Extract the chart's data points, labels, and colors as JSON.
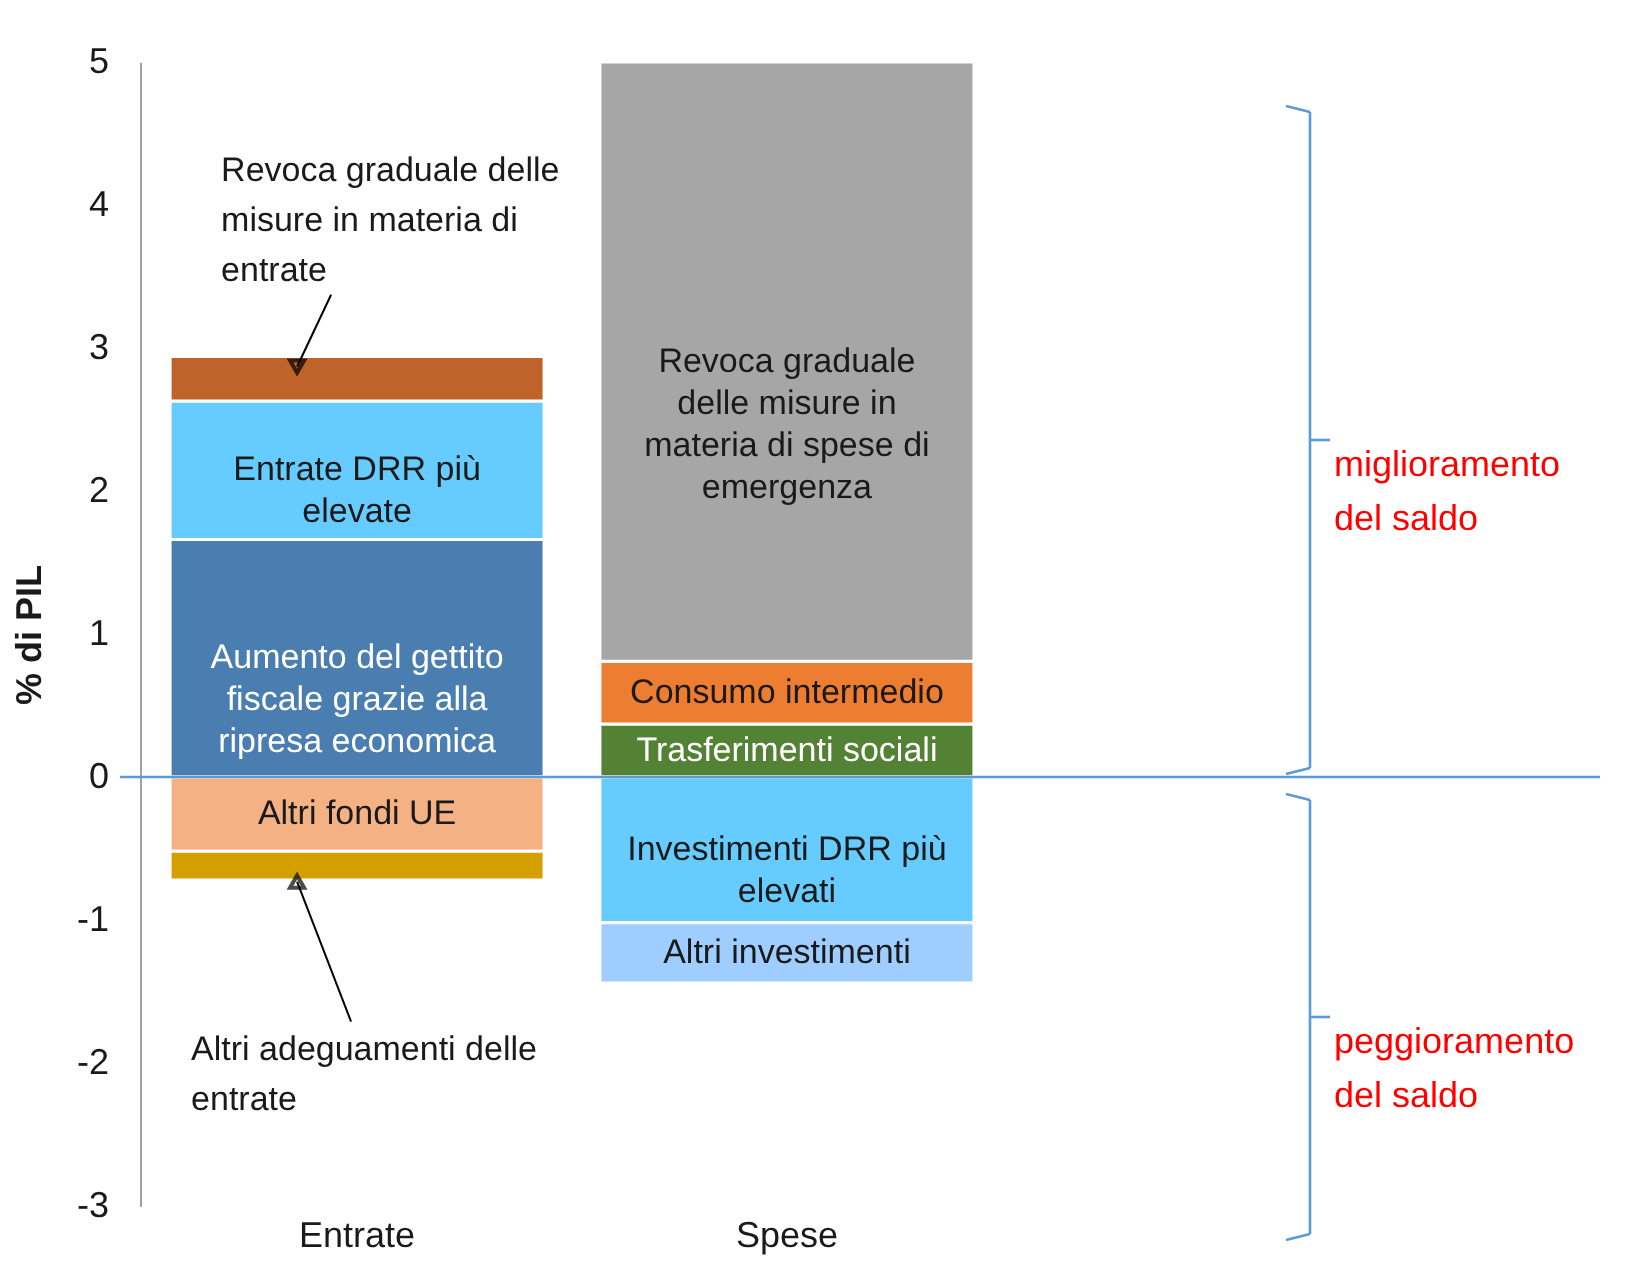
{
  "chart_data": {
    "type": "bar",
    "stacked": true,
    "ylabel": "% di PIL",
    "categories": [
      "Entrate",
      "Spese"
    ],
    "ylim": [
      -3,
      5
    ],
    "yticks": [
      -3,
      -2,
      -1,
      0,
      1,
      2,
      3,
      4,
      5
    ],
    "grid": false,
    "legend": false,
    "series": [
      {
        "name": "Aumento del gettito fiscale grazie alla ripresa economica",
        "color": "#4a7eb0",
        "values": [
          1.66,
          null
        ]
      },
      {
        "name": "Entrate DRR più elevate",
        "color": "#66ccff",
        "values": [
          0.97,
          null
        ]
      },
      {
        "name": "Revoca graduale delle misure in materia di entrate",
        "color": "#c0632b",
        "values": [
          0.31,
          null
        ]
      },
      {
        "name": "Altri fondi UE",
        "color": "#f4b183",
        "values": [
          -0.52,
          null
        ]
      },
      {
        "name": "Altri adeguamenti delle entrate",
        "color": "#d4a000",
        "values": [
          -0.2,
          null
        ]
      },
      {
        "name": "Trasferimenti sociali",
        "color": "#548235",
        "values": [
          null,
          0.37
        ]
      },
      {
        "name": "Consumo intermedio",
        "color": "#ed7d31",
        "values": [
          null,
          0.44
        ]
      },
      {
        "name": "Revoca graduale delle misure in materia di spese di emergenza",
        "color": "#a6a6a6",
        "values": [
          null,
          4.19
        ]
      },
      {
        "name": "Investimenti DRR più elevati",
        "color": "#66ccff",
        "values": [
          null,
          -1.02
        ]
      },
      {
        "name": "Altri investimenti",
        "color": "#9fcdff",
        "values": [
          null,
          -0.42
        ]
      }
    ],
    "ref_lines": [
      {
        "axis": "y",
        "value": 0,
        "color": "#5b9bd5"
      }
    ],
    "annotations": [
      "miglioramento del saldo",
      "peggioramento del saldo"
    ]
  }
}
